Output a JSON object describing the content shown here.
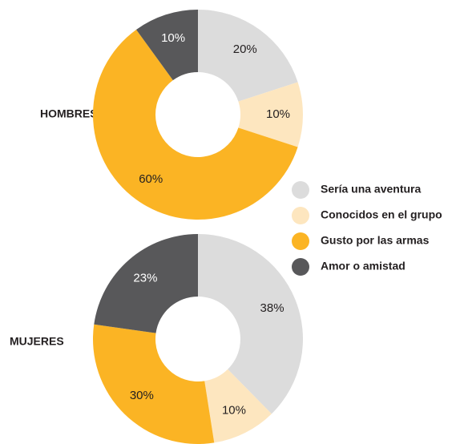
{
  "chart_data": [
    {
      "type": "pie",
      "title": "HOMBRES",
      "categories": [
        "Sería una aventura",
        "Conocidos en el grupo",
        "Gusto por las armas",
        "Amor o amistad"
      ],
      "values": [
        20,
        10,
        60,
        10
      ],
      "value_labels": [
        "20%",
        "10%",
        "60%",
        "10%"
      ],
      "colors": [
        "#dcdcdc",
        "#fde6bf",
        "#fbb424",
        "#58585a"
      ]
    },
    {
      "type": "pie",
      "title": "MUJERES",
      "categories": [
        "Sería una aventura",
        "Conocidos en el grupo",
        "Gusto por las armas",
        "Amor o amistad"
      ],
      "values": [
        38,
        10,
        30,
        23
      ],
      "value_labels": [
        "38%",
        "10%",
        "30%",
        "23%"
      ],
      "colors": [
        "#dcdcdc",
        "#fde6bf",
        "#fbb424",
        "#58585a"
      ]
    }
  ]
}
